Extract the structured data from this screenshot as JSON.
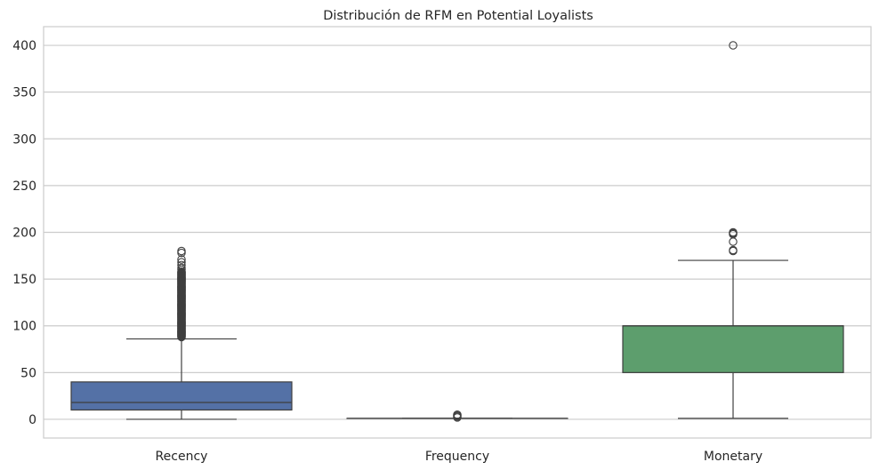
{
  "chart_data": {
    "type": "boxplot",
    "title": "Distribución de RFM en Potential Loyalists",
    "xlabel": "",
    "ylabel": "",
    "ylim": [
      -20,
      420
    ],
    "yticks": [
      0,
      50,
      100,
      150,
      200,
      250,
      300,
      350,
      400
    ],
    "grid": true,
    "categories": [
      "Recency",
      "Frequency",
      "Monetary"
    ],
    "boxes": [
      {
        "category": "Recency",
        "color": "#5471a6",
        "q1": 10,
        "median": 18,
        "q3": 40,
        "whisker_low": 0,
        "whisker_high": 86,
        "outlier_range": [
          88,
          158
        ],
        "outliers": [
          160,
          162,
          165,
          168,
          171,
          178,
          180
        ]
      },
      {
        "category": "Frequency",
        "color": "#dd8452",
        "q1": 1,
        "median": 1,
        "q3": 1,
        "whisker_low": 1,
        "whisker_high": 1,
        "outliers": [
          2,
          3,
          4,
          5
        ]
      },
      {
        "category": "Monetary",
        "color": "#5d9e6d",
        "q1": 50,
        "median": 100,
        "q3": 100,
        "whisker_low": 1,
        "whisker_high": 170,
        "outliers": [
          180,
          181,
          190,
          198,
          199,
          200,
          400
        ]
      }
    ]
  }
}
